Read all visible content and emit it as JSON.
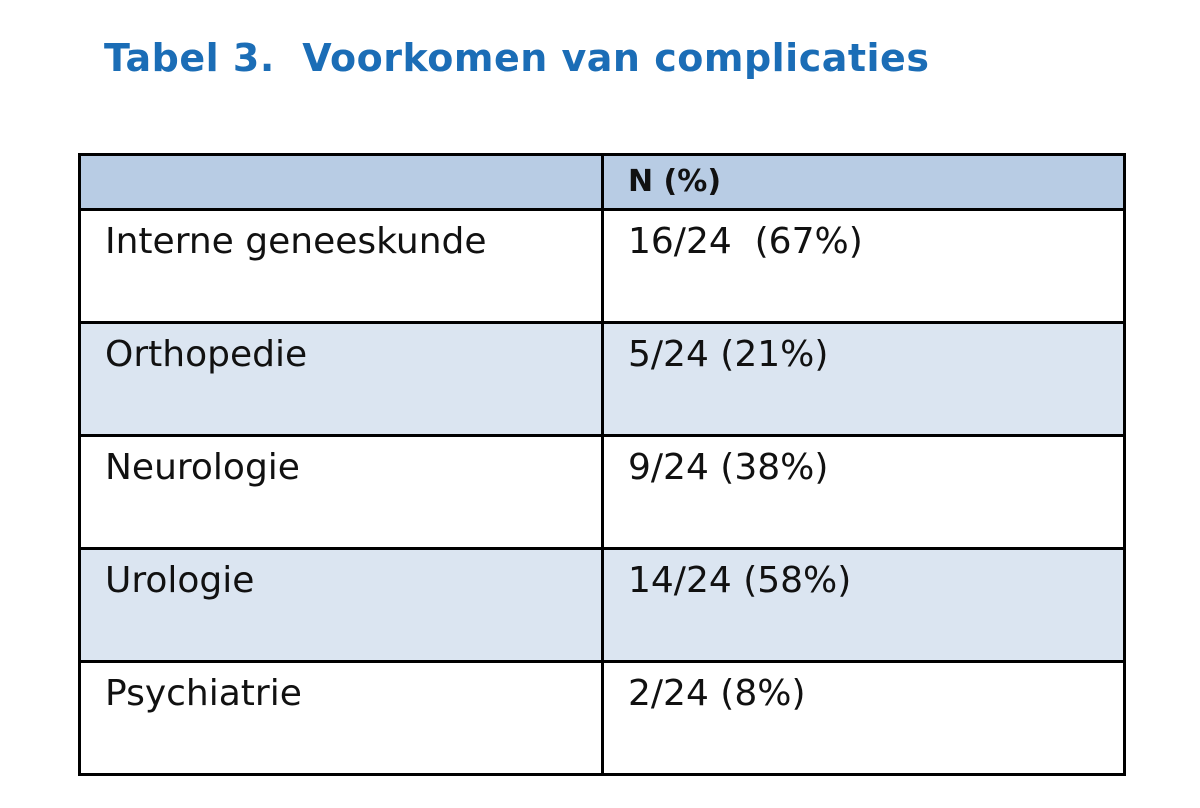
{
  "title": "Tabel 3.  Voorkomen van complicaties",
  "table": {
    "header": [
      "N (%)"
    ],
    "rows": [
      [
        "Interne geneeskunde",
        "16/24  (67%)"
      ],
      [
        "Orthopedie",
        "5/24 (21%)"
      ],
      [
        "Neurologie",
        "9/24 (38%)"
      ],
      [
        "Urologie",
        "14/24 (58%)"
      ],
      [
        "Psychiatrie",
        "2/24 (8%)"
      ]
    ]
  }
}
